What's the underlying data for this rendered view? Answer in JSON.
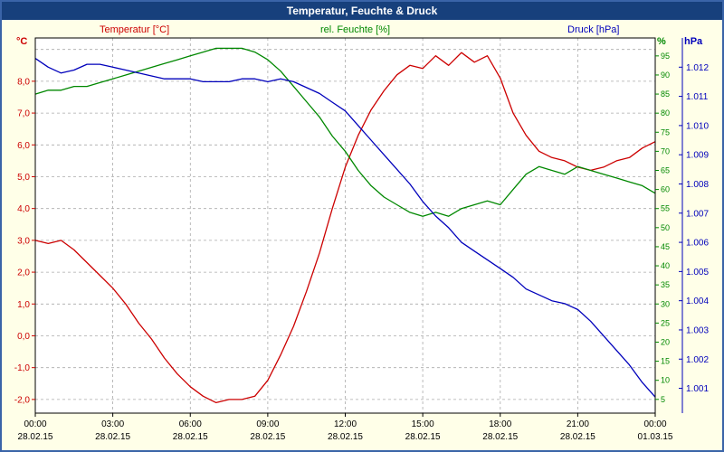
{
  "window": {
    "title": "Temperatur, Feuchte & Druck"
  },
  "colors": {
    "temperature": "#cc0000",
    "humidity": "#008800",
    "pressure": "#0000bb",
    "background": "#ffffe8",
    "titlebar": "#17407c",
    "window_border": "#3a64a8",
    "grid": "#aaaaaa",
    "plot_background": "#ffffff",
    "axis_frame": "#000000"
  },
  "chart_data": {
    "type": "line",
    "title": "Temperatur, Feuchte & Druck",
    "x_start_hour": 0,
    "x_end_hour": 24,
    "sample_interval_hours": 0.5,
    "x_tick_interval_hours": 3,
    "x_ticks": [
      {
        "time": "00:00",
        "date": "28.02.15"
      },
      {
        "time": "03:00",
        "date": "28.02.15"
      },
      {
        "time": "06:00",
        "date": "28.02.15"
      },
      {
        "time": "09:00",
        "date": "28.02.15"
      },
      {
        "time": "12:00",
        "date": "28.02.15"
      },
      {
        "time": "15:00",
        "date": "28.02.15"
      },
      {
        "time": "18:00",
        "date": "28.02.15"
      },
      {
        "time": "21:00",
        "date": "28.02.15"
      },
      {
        "time": "00:00",
        "date": "01.03.15"
      }
    ],
    "series": [
      {
        "name": "Temperatur [°C]",
        "unit": "°C",
        "color": "#cc0000",
        "axis": "temperature",
        "values": [
          3.0,
          2.9,
          3.0,
          2.7,
          2.3,
          1.9,
          1.5,
          1.0,
          0.4,
          -0.1,
          -0.7,
          -1.2,
          -1.6,
          -1.9,
          -2.1,
          -2.0,
          -2.0,
          -1.9,
          -1.4,
          -0.6,
          0.3,
          1.4,
          2.6,
          4.0,
          5.3,
          6.3,
          7.1,
          7.7,
          8.2,
          8.5,
          8.4,
          8.8,
          8.5,
          8.9,
          8.6,
          8.8,
          8.1,
          7.0,
          6.3,
          5.8,
          5.6,
          5.5,
          5.3,
          5.2,
          5.3,
          5.5,
          5.6,
          5.9,
          6.1
        ]
      },
      {
        "name": "rel. Feuchte [%]",
        "unit": "%",
        "color": "#008800",
        "axis": "humidity",
        "values": [
          85,
          86,
          86,
          87,
          87,
          88,
          89,
          90,
          91,
          92,
          93,
          94,
          95,
          96,
          97,
          97,
          97,
          96,
          94,
          91,
          87,
          83,
          79,
          74,
          70,
          65,
          61,
          58,
          56,
          54,
          53,
          54,
          53,
          55,
          56,
          57,
          56,
          60,
          64,
          66,
          65,
          64,
          66,
          65,
          64,
          63,
          62,
          61,
          59
        ]
      },
      {
        "name": "Druck [hPa]",
        "unit": "hPa",
        "color": "#0000bb",
        "axis": "pressure",
        "values": [
          1012.3,
          1012.0,
          1011.8,
          1011.9,
          1012.1,
          1012.1,
          1012.0,
          1011.9,
          1011.8,
          1011.7,
          1011.6,
          1011.6,
          1011.6,
          1011.5,
          1011.5,
          1011.5,
          1011.6,
          1011.6,
          1011.5,
          1011.6,
          1011.5,
          1011.3,
          1011.1,
          1010.8,
          1010.5,
          1010.0,
          1009.5,
          1009.0,
          1008.5,
          1008.0,
          1007.4,
          1006.9,
          1006.5,
          1006.0,
          1005.7,
          1005.4,
          1005.1,
          1004.8,
          1004.4,
          1004.2,
          1004.0,
          1003.9,
          1003.7,
          1003.3,
          1002.8,
          1002.3,
          1001.8,
          1001.2,
          1000.7
        ]
      }
    ],
    "axes": {
      "temperature": {
        "side": "left",
        "unit_label": "°C",
        "min": -2.43,
        "max": 9.36,
        "tick_values": [
          -2,
          -1,
          0,
          1,
          2,
          3,
          4,
          5,
          6,
          7,
          8
        ],
        "tick_labels": [
          "-2,0",
          "-1,0",
          "0,0",
          "1,0",
          "2,0",
          "3,0",
          "4,0",
          "5,0",
          "6,0",
          "7,0",
          "8,0"
        ]
      },
      "humidity": {
        "side": "right",
        "unit_label": "%",
        "min": 1.4,
        "max": 99.7,
        "tick_values": [
          5,
          10,
          15,
          20,
          25,
          30,
          35,
          40,
          45,
          50,
          55,
          60,
          65,
          70,
          75,
          80,
          85,
          90,
          95
        ],
        "tick_labels": [
          "5",
          "10",
          "15",
          "20",
          "25",
          "30",
          "35",
          "40",
          "45",
          "50",
          "55",
          "60",
          "65",
          "70",
          "75",
          "80",
          "85",
          "90",
          "95"
        ]
      },
      "pressure": {
        "side": "far-right",
        "unit_label": "hPa",
        "min": 1000.15,
        "max": 1013.0,
        "tick_values": [
          1001,
          1002,
          1003,
          1004,
          1005,
          1006,
          1007,
          1008,
          1009,
          1010,
          1011,
          1012
        ],
        "tick_labels": [
          "1.001",
          "1.002",
          "1.003",
          "1.004",
          "1.005",
          "1.006",
          "1.007",
          "1.008",
          "1.009",
          "1.010",
          "1.011",
          "1.012"
        ]
      }
    },
    "grid": {
      "horizontal_at_temp": [
        -2,
        -1,
        0,
        1,
        2,
        3,
        4,
        5,
        6,
        7,
        8,
        9
      ],
      "vertical_at_hours": [
        3,
        6,
        9,
        12,
        15,
        18,
        21
      ]
    },
    "legend_position": "top"
  }
}
